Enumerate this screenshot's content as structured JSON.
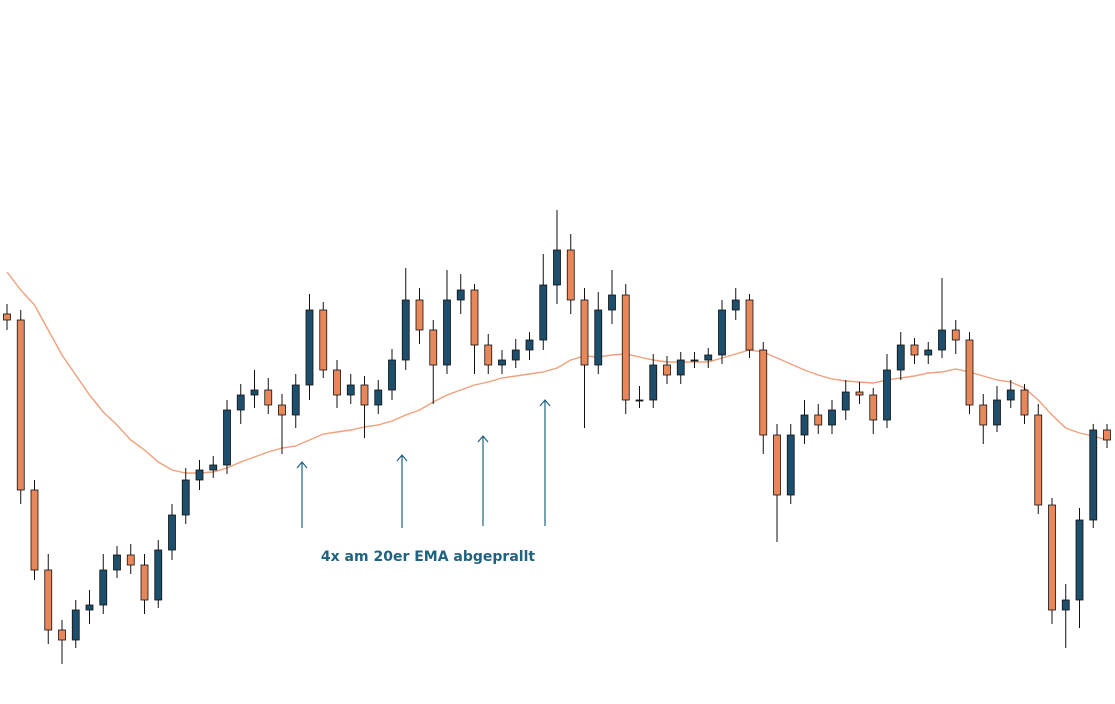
{
  "chart_data": {
    "type": "candlestick",
    "annotation": "4x am 20er EMA abgeprallt",
    "ylim": [
      0,
      704
    ],
    "up_color": "#1d4e6b",
    "down_color": "#e8875a",
    "wick_color": "#111111",
    "open": [
      390,
      384,
      214,
      134,
      74,
      64,
      94,
      99,
      134,
      149,
      139,
      104,
      154,
      189,
      224,
      234,
      239,
      294,
      309,
      314,
      299,
      289,
      319,
      394,
      334,
      309,
      319,
      299,
      314,
      344,
      404,
      374,
      339,
      404,
      414,
      359,
      339,
      344,
      354,
      364,
      419,
      454,
      404,
      339,
      394,
      409,
      304,
      304,
      339,
      329,
      344,
      344,
      349,
      394,
      404,
      354,
      269,
      209,
      269,
      289,
      279,
      294,
      312,
      309,
      284,
      334,
      359,
      349,
      354,
      374,
      364,
      299,
      279,
      304,
      314,
      289,
      199,
      94,
      104,
      184,
      274
    ],
    "high": [
      400,
      394,
      224,
      150,
      84,
      104,
      114,
      150,
      158,
      160,
      150,
      164,
      200,
      236,
      244,
      248,
      304,
      320,
      334,
      326,
      310,
      330,
      410,
      402,
      344,
      330,
      328,
      324,
      355,
      436,
      416,
      384,
      434,
      430,
      420,
      370,
      354,
      365,
      372,
      450,
      494,
      470,
      416,
      412,
      434,
      420,
      318,
      350,
      348,
      352,
      352,
      356,
      404,
      416,
      410,
      362,
      280,
      280,
      304,
      300,
      304,
      324,
      322,
      316,
      350,
      372,
      366,
      362,
      426,
      384,
      372,
      310,
      318,
      324,
      320,
      300,
      206,
      120,
      196,
      280,
      280
    ],
    "low": [
      374,
      200,
      124,
      60,
      40,
      56,
      80,
      90,
      126,
      130,
      90,
      96,
      144,
      180,
      214,
      226,
      230,
      280,
      296,
      290,
      250,
      276,
      304,
      326,
      296,
      300,
      266,
      290,
      304,
      334,
      360,
      300,
      330,
      390,
      330,
      330,
      330,
      336,
      344,
      354,
      400,
      390,
      276,
      330,
      380,
      290,
      296,
      296,
      320,
      320,
      336,
      336,
      340,
      384,
      346,
      250,
      162,
      200,
      260,
      270,
      270,
      284,
      300,
      270,
      276,
      324,
      340,
      340,
      346,
      350,
      290,
      260,
      272,
      296,
      280,
      190,
      80,
      56,
      76,
      176,
      256
    ],
    "close": [
      384,
      214,
      134,
      74,
      64,
      94,
      99,
      134,
      149,
      139,
      104,
      154,
      189,
      224,
      234,
      239,
      294,
      309,
      314,
      299,
      289,
      319,
      394,
      334,
      309,
      319,
      299,
      314,
      344,
      404,
      374,
      339,
      404,
      414,
      359,
      339,
      344,
      354,
      364,
      419,
      454,
      404,
      339,
      394,
      409,
      304,
      304,
      339,
      329,
      344,
      344,
      349,
      394,
      404,
      354,
      269,
      209,
      269,
      289,
      279,
      294,
      312,
      309,
      284,
      334,
      359,
      349,
      354,
      374,
      364,
      299,
      279,
      304,
      314,
      289,
      199,
      94,
      104,
      184,
      274,
      264
    ],
    "ema": {
      "color": "#f0a07a",
      "values": [
        432,
        414,
        399,
        374,
        349,
        329,
        309,
        292,
        279,
        264,
        254,
        242,
        234,
        231,
        231,
        232,
        236,
        242,
        247,
        252,
        256,
        258,
        264,
        270,
        272,
        274,
        277,
        279,
        283,
        289,
        294,
        302,
        309,
        314,
        319,
        322,
        326,
        328,
        330,
        332,
        336,
        344,
        348,
        347,
        349,
        350,
        347,
        344,
        342,
        342,
        342,
        342,
        346,
        350,
        354,
        352,
        346,
        340,
        334,
        329,
        325,
        323,
        322,
        321,
        324,
        326,
        328,
        331,
        332,
        335,
        332,
        328,
        324,
        322,
        316,
        304,
        289,
        276,
        271,
        268,
        264
      ]
    }
  }
}
